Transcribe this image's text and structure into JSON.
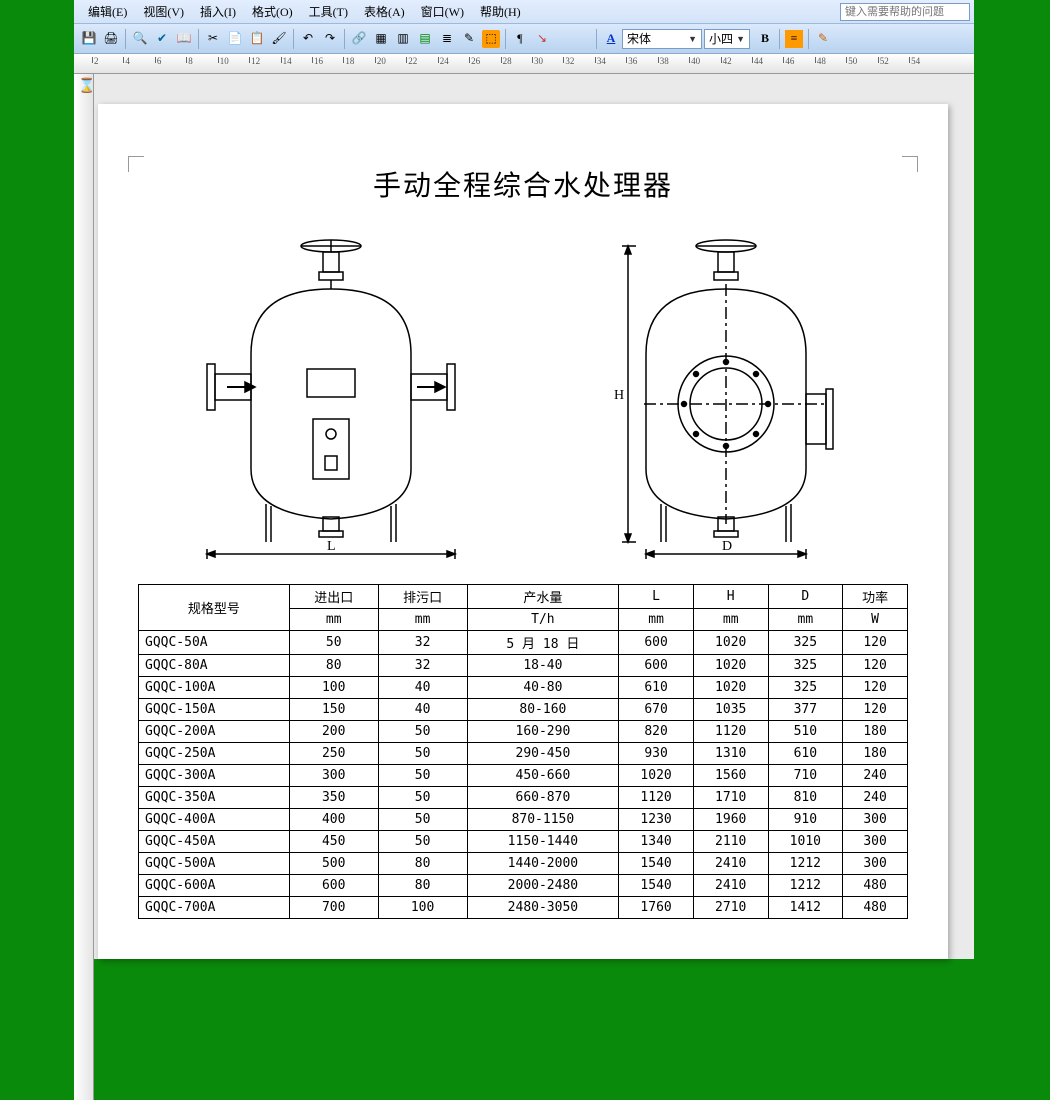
{
  "menubar": {
    "items": [
      "编辑(E)",
      "视图(V)",
      "插入(I)",
      "格式(O)",
      "工具(T)",
      "表格(A)",
      "窗口(W)",
      "帮助(H)"
    ],
    "help_placeholder": "键入需要帮助的问题"
  },
  "toolbar": {
    "font_style_label": "A",
    "font_name": "宋体",
    "font_size": "小四",
    "bold_label": "B"
  },
  "ruler": {
    "start": 2,
    "end": 54,
    "step": 2
  },
  "document": {
    "title": "手动全程综合水处理器",
    "diagram_labels": {
      "L": "L",
      "H": "H",
      "D": "D"
    }
  },
  "table": {
    "header_row1": [
      "规格型号",
      "进出口",
      "排污口",
      "产水量",
      "L",
      "H",
      "D",
      "功率"
    ],
    "header_row2": [
      "mm",
      "mm",
      "T/h",
      "mm",
      "mm",
      "mm",
      "W"
    ],
    "rows": [
      [
        "GQQC-50A",
        "50",
        "32",
        "5 月 18 日",
        "600",
        "1020",
        "325",
        "120"
      ],
      [
        "GQQC-80A",
        "80",
        "32",
        "18-40",
        "600",
        "1020",
        "325",
        "120"
      ],
      [
        "GQQC-100A",
        "100",
        "40",
        "40-80",
        "610",
        "1020",
        "325",
        "120"
      ],
      [
        "GQQC-150A",
        "150",
        "40",
        "80-160",
        "670",
        "1035",
        "377",
        "120"
      ],
      [
        "GQQC-200A",
        "200",
        "50",
        "160-290",
        "820",
        "1120",
        "510",
        "180"
      ],
      [
        "GQQC-250A",
        "250",
        "50",
        "290-450",
        "930",
        "1310",
        "610",
        "180"
      ],
      [
        "GQQC-300A",
        "300",
        "50",
        "450-660",
        "1020",
        "1560",
        "710",
        "240"
      ],
      [
        "GQQC-350A",
        "350",
        "50",
        "660-870",
        "1120",
        "1710",
        "810",
        "240"
      ],
      [
        "GQQC-400A",
        "400",
        "50",
        "870-1150",
        "1230",
        "1960",
        "910",
        "300"
      ],
      [
        "GQQC-450A",
        "450",
        "50",
        "1150-1440",
        "1340",
        "2110",
        "1010",
        "300"
      ],
      [
        "GQQC-500A",
        "500",
        "80",
        "1440-2000",
        "1540",
        "2410",
        "1212",
        "300"
      ],
      [
        "GQQC-600A",
        "600",
        "80",
        "2000-2480",
        "1540",
        "2410",
        "1212",
        "480"
      ],
      [
        "GQQC-700A",
        "700",
        "100",
        "2480-3050",
        "1760",
        "2710",
        "1412",
        "480"
      ]
    ]
  },
  "colors": {
    "page_bg": "#0a8a0a",
    "toolbar_grad_top": "#dbe9fb",
    "toolbar_grad_bot": "#b8d3f0",
    "menubar_grad_top": "#e3eefe",
    "menubar_grad_bot": "#d3e3f8",
    "paper_bg": "#ffffff",
    "border": "#000000"
  }
}
